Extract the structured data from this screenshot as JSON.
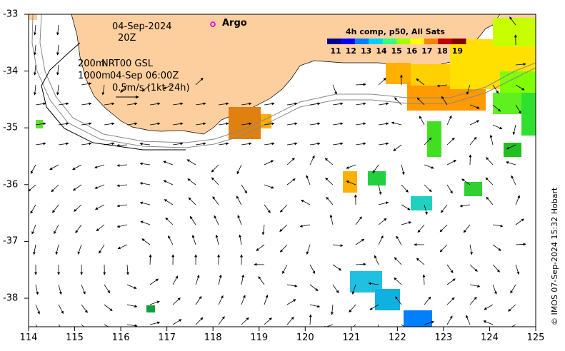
{
  "map": {
    "date": "04-Sep-2024",
    "time": "20Z",
    "legend_argo": "Argo",
    "contour_line1": "200m",
    "contour_line2": "1000m",
    "product_line1": "NRT00 GSL",
    "product_line2": "04-Sep 06:00Z",
    "scale_label": "0.5m/s (1kt 24h)",
    "copyright": "© IMOS 07-Sep-2024 15:32 Hobart",
    "colorbar": {
      "title": "4h comp, p50, All Sats",
      "labels": [
        "11",
        "12",
        "13",
        "14",
        "15",
        "16",
        "17",
        "18",
        "19"
      ],
      "colors": [
        "#00008f",
        "#0000ff",
        "#0080ff",
        "#00d0ff",
        "#30ff80",
        "#a0ff00",
        "#ffff00",
        "#ff8000",
        "#c00000",
        "#800000"
      ]
    },
    "x_axis": {
      "ticks": [
        "114",
        "115",
        "116",
        "117",
        "118",
        "119",
        "120",
        "121",
        "122",
        "123",
        "124",
        "125"
      ]
    },
    "y_axis": {
      "ticks": [
        "-33",
        "-34",
        "-35",
        "-36",
        "-37",
        "-38"
      ]
    },
    "colors": {
      "land": "#fdcf9e",
      "argo": "#e000e0"
    }
  }
}
